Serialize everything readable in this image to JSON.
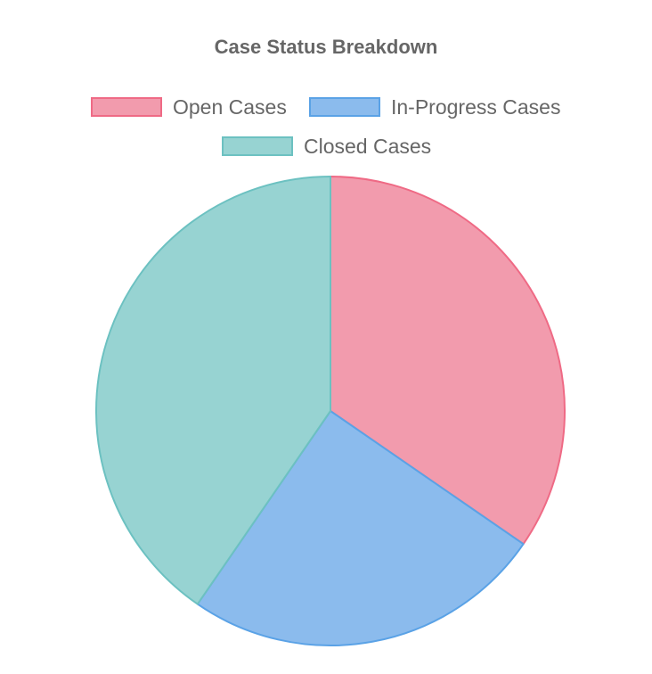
{
  "chart_data": {
    "type": "pie",
    "title": "Case Status Breakdown",
    "categories": [
      "Open Cases",
      "In-Progress Cases",
      "Closed Cases"
    ],
    "values": [
      34.6,
      25.0,
      40.4
    ],
    "colors": {
      "fill": [
        "#f29bad",
        "#8bbbed",
        "#97d3d2"
      ],
      "stroke": [
        "#ef6a85",
        "#5aa2e6",
        "#6cc1c1"
      ]
    },
    "legend_position": "top"
  }
}
